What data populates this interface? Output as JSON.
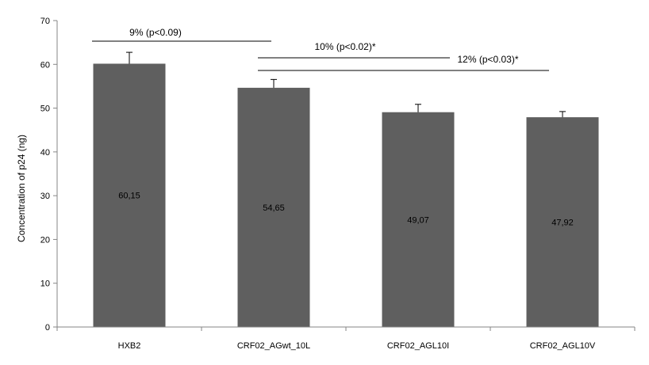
{
  "chart_data": {
    "type": "bar",
    "categories": [
      "HXB2",
      "CRF02_AGwt_10L",
      "CRF02_AGL10I",
      "CRF02_AGL10V"
    ],
    "values": [
      60.15,
      54.65,
      49.07,
      47.92
    ],
    "value_labels": [
      "60,15",
      "54,65",
      "49,07",
      "47,92"
    ],
    "error_plus": [
      2.6,
      1.9,
      1.8,
      1.3
    ],
    "title": "",
    "xlabel": "",
    "ylabel": "Concentration of p24  (ng)",
    "ylim": [
      0,
      70
    ],
    "yticks": [
      0,
      10,
      20,
      30,
      40,
      50,
      60,
      70
    ],
    "grid": false,
    "legend": "none",
    "bar_color": "#5f5f5f",
    "annotations": [
      {
        "text": "9% (p<0.09)",
        "from": 0,
        "to": 1
      },
      {
        "text": "10% (p<0.02)*",
        "from": 1,
        "to": 2
      },
      {
        "text": "12% (p<0.03)*",
        "from": 1,
        "to": 3
      }
    ]
  }
}
